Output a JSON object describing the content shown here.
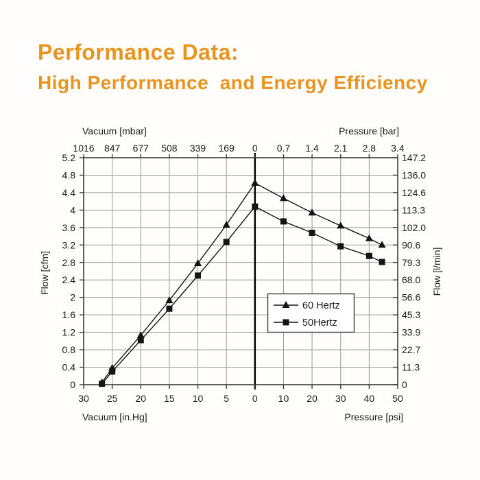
{
  "title": {
    "line1": "Performance Data:",
    "line2": "High Performance  and Energy Efficiency",
    "color": "#E8941E"
  },
  "colors": {
    "background": "#fffefc",
    "series": "#141414",
    "grid": "#989898",
    "border": "#3a3a3a",
    "text": "#1b1b1b"
  },
  "chart_data": {
    "type": "line",
    "title": "",
    "axes": {
      "top_left_label": "Vacuum [mbar]",
      "top_right_label": "Pressure [bar]",
      "bottom_left_label": "Vacuum [in.Hg]",
      "bottom_right_label": "Pressure [psi]",
      "left_label": "Flow [cfm]",
      "right_label": "Flow [l/min]",
      "top_ticks": [
        "1016",
        "847",
        "677",
        "508",
        "339",
        "169",
        "0",
        "0.7",
        "1.4",
        "2.1",
        "2.8",
        "3.4"
      ],
      "bottom_ticks": [
        "30",
        "25",
        "20",
        "15",
        "10",
        "5",
        "0",
        "10",
        "20",
        "30",
        "40",
        "50"
      ],
      "left_ticks": [
        "5.2",
        "4.8",
        "4.4",
        "4",
        "3.6",
        "3.2",
        "2.8",
        "2.4",
        "2",
        "1.6",
        "1.2",
        "0.8",
        "0.4",
        "0"
      ],
      "right_ticks": [
        "147.2",
        "136.0",
        "124.6",
        "113.3",
        "102.0",
        "90.6",
        "79.3",
        "68.0",
        "56.6",
        "45.3",
        "33.9",
        "22.7",
        "11.3",
        "0"
      ],
      "left_range_cfm": [
        0,
        5.2
      ],
      "vacuum_range_inHg": [
        30,
        0
      ],
      "pressure_range_psi": [
        0,
        50
      ],
      "grid": "on"
    },
    "legend": {
      "position": "center-right"
    },
    "series": [
      {
        "name": "60 Hertz",
        "marker": "triangle",
        "points": [
          {
            "vacuum_inHg": 26.8,
            "cfm": 0.05
          },
          {
            "vacuum_inHg": 25,
            "cfm": 0.38
          },
          {
            "vacuum_inHg": 20,
            "cfm": 1.13
          },
          {
            "vacuum_inHg": 15,
            "cfm": 1.93
          },
          {
            "vacuum_inHg": 10,
            "cfm": 2.78
          },
          {
            "vacuum_inHg": 5,
            "cfm": 3.66
          },
          {
            "vacuum_inHg": 0,
            "cfm": 4.62
          },
          {
            "pressure_psi": 10,
            "cfm": 4.27
          },
          {
            "pressure_psi": 20,
            "cfm": 3.94
          },
          {
            "pressure_psi": 30,
            "cfm": 3.64
          },
          {
            "pressure_psi": 40,
            "cfm": 3.35
          },
          {
            "pressure_psi": 44.5,
            "cfm": 3.2
          }
        ]
      },
      {
        "name": "50Hertz",
        "marker": "square",
        "points": [
          {
            "vacuum_inHg": 26.8,
            "cfm": 0.02
          },
          {
            "vacuum_inHg": 25,
            "cfm": 0.3
          },
          {
            "vacuum_inHg": 20,
            "cfm": 1.02
          },
          {
            "vacuum_inHg": 15,
            "cfm": 1.74
          },
          {
            "vacuum_inHg": 10,
            "cfm": 2.5
          },
          {
            "vacuum_inHg": 5,
            "cfm": 3.27
          },
          {
            "vacuum_inHg": 0,
            "cfm": 4.08
          },
          {
            "pressure_psi": 10,
            "cfm": 3.74
          },
          {
            "pressure_psi": 20,
            "cfm": 3.48
          },
          {
            "pressure_psi": 30,
            "cfm": 3.17
          },
          {
            "pressure_psi": 40,
            "cfm": 2.95
          },
          {
            "pressure_psi": 44.5,
            "cfm": 2.81
          }
        ]
      }
    ]
  }
}
